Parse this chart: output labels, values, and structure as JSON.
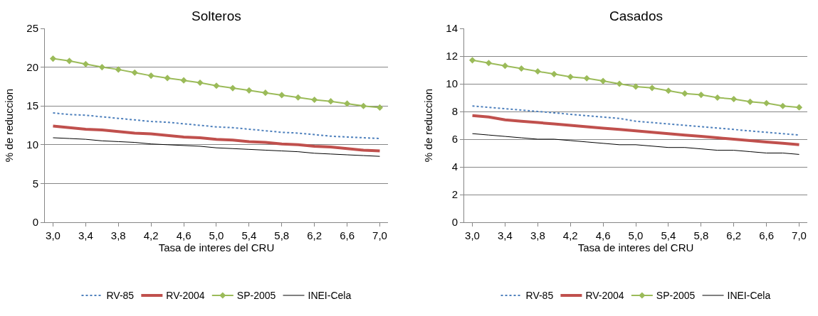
{
  "chart_data": [
    {
      "type": "line",
      "title": "Solteros",
      "xlabel": "Tasa de interes del CRU",
      "ylabel": "% de reduccion",
      "x": [
        3.0,
        3.2,
        3.4,
        3.6,
        3.8,
        4.0,
        4.2,
        4.4,
        4.6,
        4.8,
        5.0,
        5.2,
        5.4,
        5.6,
        5.8,
        6.0,
        6.2,
        6.4,
        6.6,
        6.8,
        7.0
      ],
      "xlim": [
        2.9,
        7.1
      ],
      "xticks": [
        {
          "value": 3.0,
          "label": "3,0"
        },
        {
          "value": 3.4,
          "label": "3,4"
        },
        {
          "value": 3.8,
          "label": "3,8"
        },
        {
          "value": 4.2,
          "label": "4,2"
        },
        {
          "value": 4.6,
          "label": "4,6"
        },
        {
          "value": 5.0,
          "label": "5,0"
        },
        {
          "value": 5.4,
          "label": "5,4"
        },
        {
          "value": 5.8,
          "label": "5,8"
        },
        {
          "value": 6.2,
          "label": "6,2"
        },
        {
          "value": 6.6,
          "label": "6,6"
        },
        {
          "value": 7.0,
          "label": "7,0"
        }
      ],
      "ylim": [
        0,
        25
      ],
      "yticks": [
        0,
        5,
        10,
        15,
        20,
        25
      ],
      "grid": "y",
      "legend": "bottom",
      "series": [
        {
          "name": "RV-85",
          "color": "#4f81bd",
          "line_style": "dotted",
          "marker": "none",
          "values": [
            14.1,
            13.9,
            13.8,
            13.6,
            13.4,
            13.2,
            13.0,
            12.9,
            12.7,
            12.5,
            12.3,
            12.2,
            12.0,
            11.8,
            11.6,
            11.5,
            11.3,
            11.1,
            11.0,
            10.9,
            10.8
          ]
        },
        {
          "name": "RV-2004",
          "color": "#c0504d",
          "line_style": "solid",
          "marker": "none",
          "values": [
            12.4,
            12.2,
            12.0,
            11.9,
            11.7,
            11.5,
            11.4,
            11.2,
            11.0,
            10.9,
            10.7,
            10.6,
            10.4,
            10.3,
            10.1,
            10.0,
            9.8,
            9.7,
            9.5,
            9.3,
            9.2
          ]
        },
        {
          "name": "SP-2005",
          "color": "#9bbb59",
          "line_style": "solid",
          "marker": "diamond",
          "values": [
            21.1,
            20.8,
            20.4,
            20.0,
            19.7,
            19.3,
            18.9,
            18.6,
            18.3,
            18.0,
            17.6,
            17.3,
            17.0,
            16.7,
            16.4,
            16.1,
            15.8,
            15.6,
            15.3,
            15.0,
            14.8
          ]
        },
        {
          "name": "INEI-Cela",
          "color": "#000000",
          "line_style": "solid",
          "marker": "none",
          "values": [
            10.9,
            10.8,
            10.7,
            10.5,
            10.4,
            10.3,
            10.1,
            10.0,
            9.9,
            9.8,
            9.6,
            9.5,
            9.4,
            9.3,
            9.2,
            9.1,
            8.9,
            8.8,
            8.7,
            8.6,
            8.5
          ]
        }
      ]
    },
    {
      "type": "line",
      "title": "Casados",
      "xlabel": "Tasa de interes del CRU",
      "ylabel": "% de reduccion",
      "x": [
        3.0,
        3.2,
        3.4,
        3.6,
        3.8,
        4.0,
        4.2,
        4.4,
        4.6,
        4.8,
        5.0,
        5.2,
        5.4,
        5.6,
        5.8,
        6.0,
        6.2,
        6.4,
        6.6,
        6.8,
        7.0
      ],
      "xlim": [
        2.9,
        7.1
      ],
      "xticks": [
        {
          "value": 3.0,
          "label": "3,0"
        },
        {
          "value": 3.4,
          "label": "3,4"
        },
        {
          "value": 3.8,
          "label": "3,8"
        },
        {
          "value": 4.2,
          "label": "4,2"
        },
        {
          "value": 4.6,
          "label": "4,6"
        },
        {
          "value": 5.0,
          "label": "5,0"
        },
        {
          "value": 5.4,
          "label": "5,4"
        },
        {
          "value": 5.8,
          "label": "5,8"
        },
        {
          "value": 6.2,
          "label": "6,2"
        },
        {
          "value": 6.6,
          "label": "6,6"
        },
        {
          "value": 7.0,
          "label": "7,0"
        }
      ],
      "ylim": [
        0,
        14
      ],
      "yticks": [
        0,
        2,
        4,
        6,
        8,
        10,
        12,
        14
      ],
      "grid": "y",
      "legend": "bottom",
      "series": [
        {
          "name": "RV-85",
          "color": "#4f81bd",
          "line_style": "dotted",
          "marker": "none",
          "values": [
            8.4,
            8.3,
            8.2,
            8.1,
            8.0,
            7.9,
            7.8,
            7.7,
            7.6,
            7.5,
            7.3,
            7.2,
            7.1,
            7.0,
            6.9,
            6.8,
            6.7,
            6.6,
            6.5,
            6.4,
            6.3
          ]
        },
        {
          "name": "RV-2004",
          "color": "#c0504d",
          "line_style": "solid",
          "marker": "none",
          "values": [
            7.7,
            7.6,
            7.4,
            7.3,
            7.2,
            7.1,
            7.0,
            6.9,
            6.8,
            6.7,
            6.6,
            6.5,
            6.4,
            6.3,
            6.2,
            6.1,
            6.0,
            5.9,
            5.8,
            5.7,
            5.6
          ]
        },
        {
          "name": "SP-2005",
          "color": "#9bbb59",
          "line_style": "solid",
          "marker": "diamond",
          "values": [
            11.7,
            11.5,
            11.3,
            11.1,
            10.9,
            10.7,
            10.5,
            10.4,
            10.2,
            10.0,
            9.8,
            9.7,
            9.5,
            9.3,
            9.2,
            9.0,
            8.9,
            8.7,
            8.6,
            8.4,
            8.3
          ]
        },
        {
          "name": "INEI-Cela",
          "color": "#000000",
          "line_style": "solid",
          "marker": "none",
          "values": [
            6.4,
            6.3,
            6.2,
            6.1,
            6.0,
            6.0,
            5.9,
            5.8,
            5.7,
            5.6,
            5.6,
            5.5,
            5.4,
            5.4,
            5.3,
            5.2,
            5.2,
            5.1,
            5.0,
            5.0,
            4.9
          ]
        }
      ]
    }
  ]
}
